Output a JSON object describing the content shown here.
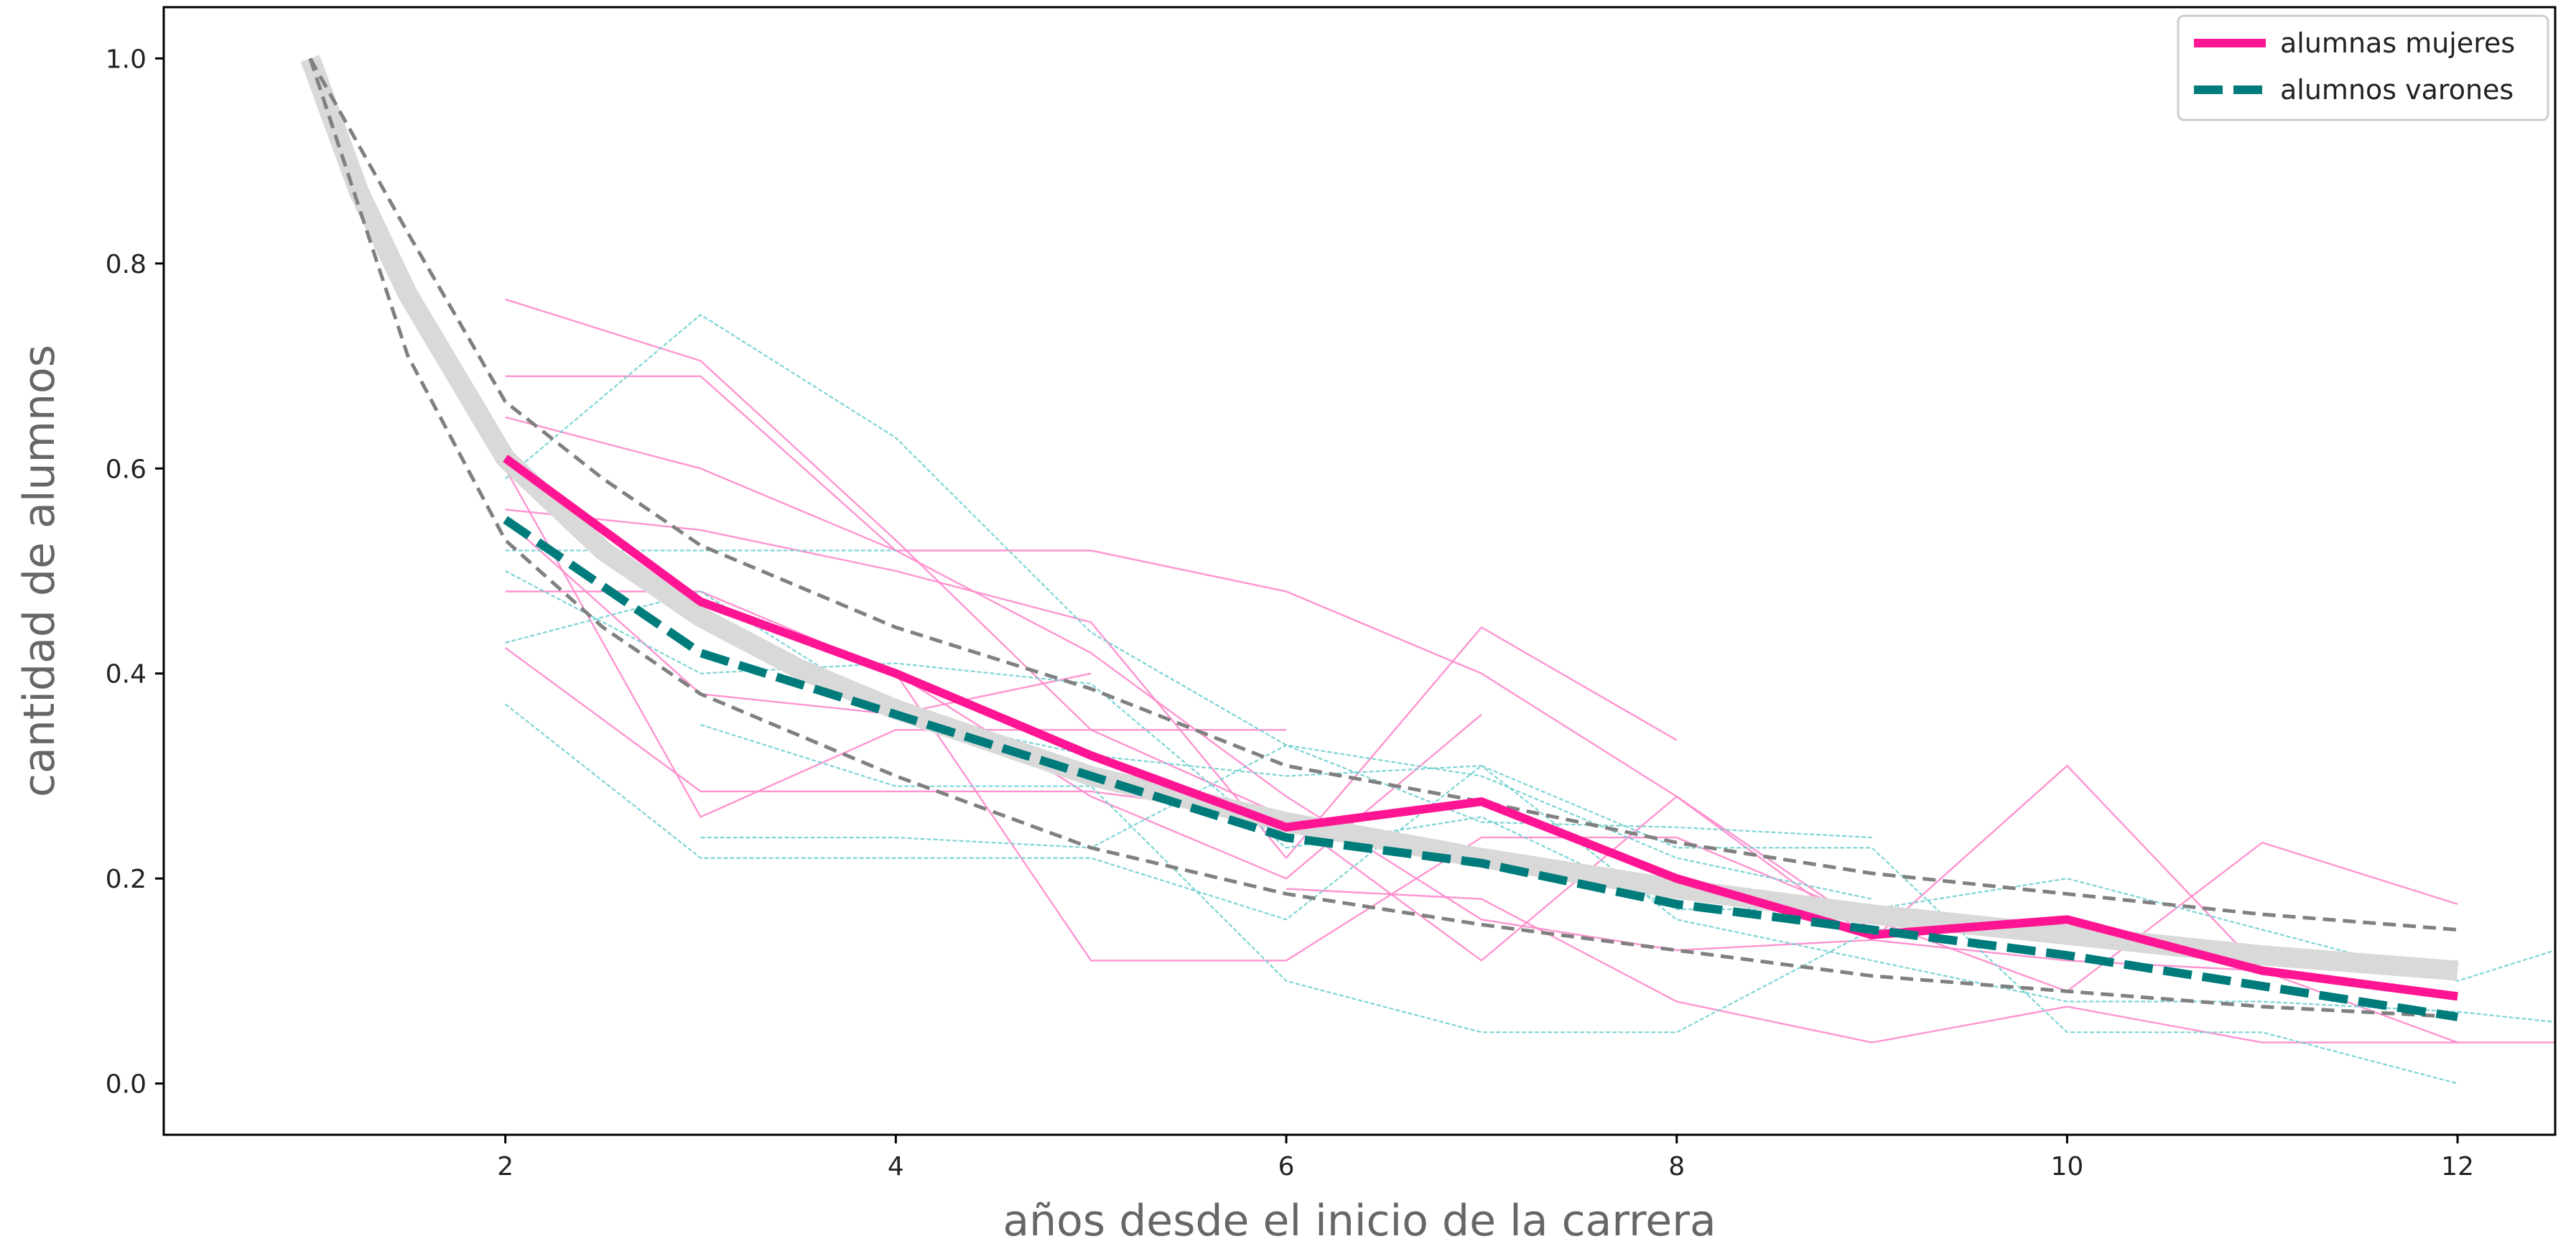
{
  "chart_data": {
    "type": "line",
    "xlabel": "años desde el inicio de la carrera",
    "ylabel": "cantidad de alumnos",
    "xlim": [
      0.25,
      12.5
    ],
    "ylim": [
      -0.05,
      1.05
    ],
    "x_ticks": [
      2,
      4,
      6,
      8,
      10,
      12
    ],
    "y_ticks": [
      "0.0",
      "0.2",
      "0.4",
      "0.6",
      "0.8",
      "1.0"
    ],
    "grid": false,
    "legend_position": "top-right",
    "colors": {
      "women": "#ff1493",
      "men": "#007b7b",
      "women_thin": "#ff88cc",
      "men_thin": "#6fcfcf",
      "trend": "#d9d9d9",
      "bounds": "#808080",
      "axes": "#000000"
    },
    "series": [
      {
        "name": "alumnas mujeres",
        "style": "solid-thick",
        "points": [
          [
            2,
            0.61
          ],
          [
            3,
            0.47
          ],
          [
            4,
            0.4
          ],
          [
            5,
            0.32
          ],
          [
            6,
            0.25
          ],
          [
            7,
            0.275
          ],
          [
            8,
            0.2
          ],
          [
            9,
            0.145
          ],
          [
            10,
            0.16
          ],
          [
            11,
            0.11
          ],
          [
            12,
            0.085
          ]
        ]
      },
      {
        "name": "alumnos varones",
        "style": "dashed-thick",
        "points": [
          [
            2,
            0.55
          ],
          [
            3,
            0.42
          ],
          [
            4,
            0.36
          ],
          [
            5,
            0.3
          ],
          [
            6,
            0.24
          ],
          [
            7,
            0.215
          ],
          [
            8,
            0.175
          ],
          [
            9,
            0.15
          ],
          [
            10,
            0.125
          ],
          [
            11,
            0.095
          ],
          [
            12,
            0.065
          ]
        ]
      }
    ],
    "trend_curve": {
      "style": "thick-gray",
      "points": [
        [
          1,
          1.0
        ],
        [
          1.25,
          0.87
        ],
        [
          1.5,
          0.77
        ],
        [
          1.75,
          0.69
        ],
        [
          2,
          0.61
        ],
        [
          2.5,
          0.52
        ],
        [
          3,
          0.455
        ],
        [
          3.5,
          0.405
        ],
        [
          4,
          0.365
        ],
        [
          5,
          0.3
        ],
        [
          6,
          0.255
        ],
        [
          7,
          0.22
        ],
        [
          8,
          0.19
        ],
        [
          9,
          0.165
        ],
        [
          10,
          0.145
        ],
        [
          11,
          0.125
        ],
        [
          12,
          0.11
        ]
      ]
    },
    "band_upper": {
      "style": "dashed-gray",
      "points": [
        [
          1,
          1.0
        ],
        [
          1.5,
          0.83
        ],
        [
          2,
          0.665
        ],
        [
          2.5,
          0.59
        ],
        [
          3,
          0.525
        ],
        [
          4,
          0.445
        ],
        [
          5,
          0.385
        ],
        [
          6,
          0.31
        ],
        [
          7,
          0.275
        ],
        [
          8,
          0.235
        ],
        [
          9,
          0.205
        ],
        [
          10,
          0.185
        ],
        [
          11,
          0.165
        ],
        [
          12,
          0.15
        ]
      ]
    },
    "band_lower": {
      "style": "dashed-gray",
      "points": [
        [
          1,
          1.0
        ],
        [
          1.5,
          0.71
        ],
        [
          2,
          0.53
        ],
        [
          2.5,
          0.445
        ],
        [
          3,
          0.38
        ],
        [
          4,
          0.3
        ],
        [
          5,
          0.23
        ],
        [
          6,
          0.185
        ],
        [
          7,
          0.155
        ],
        [
          8,
          0.13
        ],
        [
          9,
          0.105
        ],
        [
          10,
          0.09
        ],
        [
          11,
          0.075
        ],
        [
          12,
          0.065
        ]
      ]
    },
    "cohorts_women": [
      [
        [
          2,
          0.765
        ],
        [
          3,
          0.705
        ],
        [
          4,
          0.53
        ],
        [
          5,
          0.345
        ],
        [
          6,
          0.26
        ]
      ],
      [
        [
          2,
          0.69
        ],
        [
          3,
          0.69
        ],
        [
          4,
          0.52
        ],
        [
          5,
          0.52
        ],
        [
          6,
          0.48
        ],
        [
          7,
          0.4
        ],
        [
          8,
          0.28
        ],
        [
          9,
          0.14
        ],
        [
          10,
          0.12
        ],
        [
          11,
          0.11
        ],
        [
          12,
          0.085
        ]
      ],
      [
        [
          2,
          0.65
        ],
        [
          3,
          0.6
        ],
        [
          4,
          0.52
        ],
        [
          5,
          0.42
        ],
        [
          6,
          0.28
        ],
        [
          7,
          0.16
        ],
        [
          8,
          0.13
        ],
        [
          9,
          0.14
        ],
        [
          10,
          0.31
        ],
        [
          11,
          0.11
        ],
        [
          12,
          0.04
        ],
        [
          12.5,
          0.04
        ]
      ],
      [
        [
          2,
          0.56
        ],
        [
          3,
          0.54
        ],
        [
          4,
          0.5
        ],
        [
          5,
          0.45
        ],
        [
          6,
          0.22
        ],
        [
          7,
          0.445
        ],
        [
          8,
          0.335
        ]
      ],
      [
        [
          2,
          0.48
        ],
        [
          3,
          0.48
        ],
        [
          4,
          0.4
        ],
        [
          5,
          0.12
        ],
        [
          6,
          0.12
        ],
        [
          7,
          0.24
        ],
        [
          8,
          0.24
        ],
        [
          9,
          0.16
        ],
        [
          10,
          0.09
        ],
        [
          11,
          0.235
        ],
        [
          12,
          0.175
        ]
      ],
      [
        [
          2,
          0.425
        ],
        [
          3,
          0.285
        ],
        [
          4,
          0.285
        ],
        [
          5,
          0.285
        ],
        [
          6,
          0.26
        ],
        [
          7,
          0.12
        ],
        [
          8,
          0.28
        ],
        [
          9,
          0.15
        ]
      ],
      [
        [
          2,
          0.6
        ],
        [
          3,
          0.26
        ],
        [
          4,
          0.345
        ],
        [
          5,
          0.345
        ],
        [
          6,
          0.345
        ]
      ],
      [
        [
          2,
          0.55
        ],
        [
          3,
          0.38
        ],
        [
          4,
          0.36
        ],
        [
          5,
          0.4
        ]
      ],
      [
        [
          4,
          0.4
        ],
        [
          5,
          0.28
        ],
        [
          6,
          0.2
        ],
        [
          7,
          0.36
        ]
      ],
      [
        [
          6,
          0.19
        ],
        [
          7,
          0.18
        ],
        [
          8,
          0.08
        ],
        [
          9,
          0.04
        ],
        [
          10,
          0.075
        ],
        [
          11,
          0.04
        ],
        [
          12,
          0.04
        ]
      ]
    ],
    "cohorts_men": [
      [
        [
          2,
          0.59
        ],
        [
          3,
          0.75
        ],
        [
          4,
          0.63
        ],
        [
          5,
          0.44
        ],
        [
          6,
          0.33
        ],
        [
          7,
          0.255
        ],
        [
          8,
          0.25
        ],
        [
          9,
          0.24
        ]
      ],
      [
        [
          2,
          0.52
        ],
        [
          3,
          0.52
        ],
        [
          4,
          0.52
        ]
      ],
      [
        [
          2,
          0.5
        ],
        [
          3,
          0.4
        ],
        [
          4,
          0.41
        ],
        [
          5,
          0.39
        ],
        [
          6,
          0.23
        ],
        [
          7,
          0.26
        ],
        [
          8,
          0.17
        ],
        [
          9,
          0.17
        ],
        [
          10,
          0.2
        ],
        [
          11,
          0.15
        ],
        [
          12,
          0.1
        ],
        [
          12.5,
          0.13
        ]
      ],
      [
        [
          2,
          0.43
        ],
        [
          3,
          0.48
        ],
        [
          4,
          0.36
        ],
        [
          5,
          0.32
        ],
        [
          6,
          0.3
        ],
        [
          7,
          0.31
        ],
        [
          8,
          0.16
        ],
        [
          9,
          0.12
        ],
        [
          10,
          0.08
        ],
        [
          11,
          0.08
        ],
        [
          12,
          0.07
        ],
        [
          12.5,
          0.06
        ]
      ],
      [
        [
          2,
          0.37
        ],
        [
          3,
          0.22
        ],
        [
          4,
          0.22
        ],
        [
          5,
          0.22
        ],
        [
          6,
          0.16
        ],
        [
          7,
          0.31
        ],
        [
          8,
          0.23
        ],
        [
          9,
          0.23
        ],
        [
          10,
          0.05
        ],
        [
          11,
          0.05
        ],
        [
          12,
          0.0
        ]
      ],
      [
        [
          3,
          0.35
        ],
        [
          4,
          0.29
        ],
        [
          5,
          0.29
        ],
        [
          6,
          0.1
        ],
        [
          7,
          0.05
        ],
        [
          8,
          0.05
        ],
        [
          9,
          0.15
        ],
        [
          10,
          0.15
        ]
      ],
      [
        [
          3,
          0.24
        ],
        [
          4,
          0.24
        ],
        [
          5,
          0.23
        ],
        [
          6,
          0.33
        ],
        [
          7,
          0.3
        ],
        [
          8,
          0.22
        ],
        [
          9,
          0.18
        ]
      ]
    ]
  }
}
